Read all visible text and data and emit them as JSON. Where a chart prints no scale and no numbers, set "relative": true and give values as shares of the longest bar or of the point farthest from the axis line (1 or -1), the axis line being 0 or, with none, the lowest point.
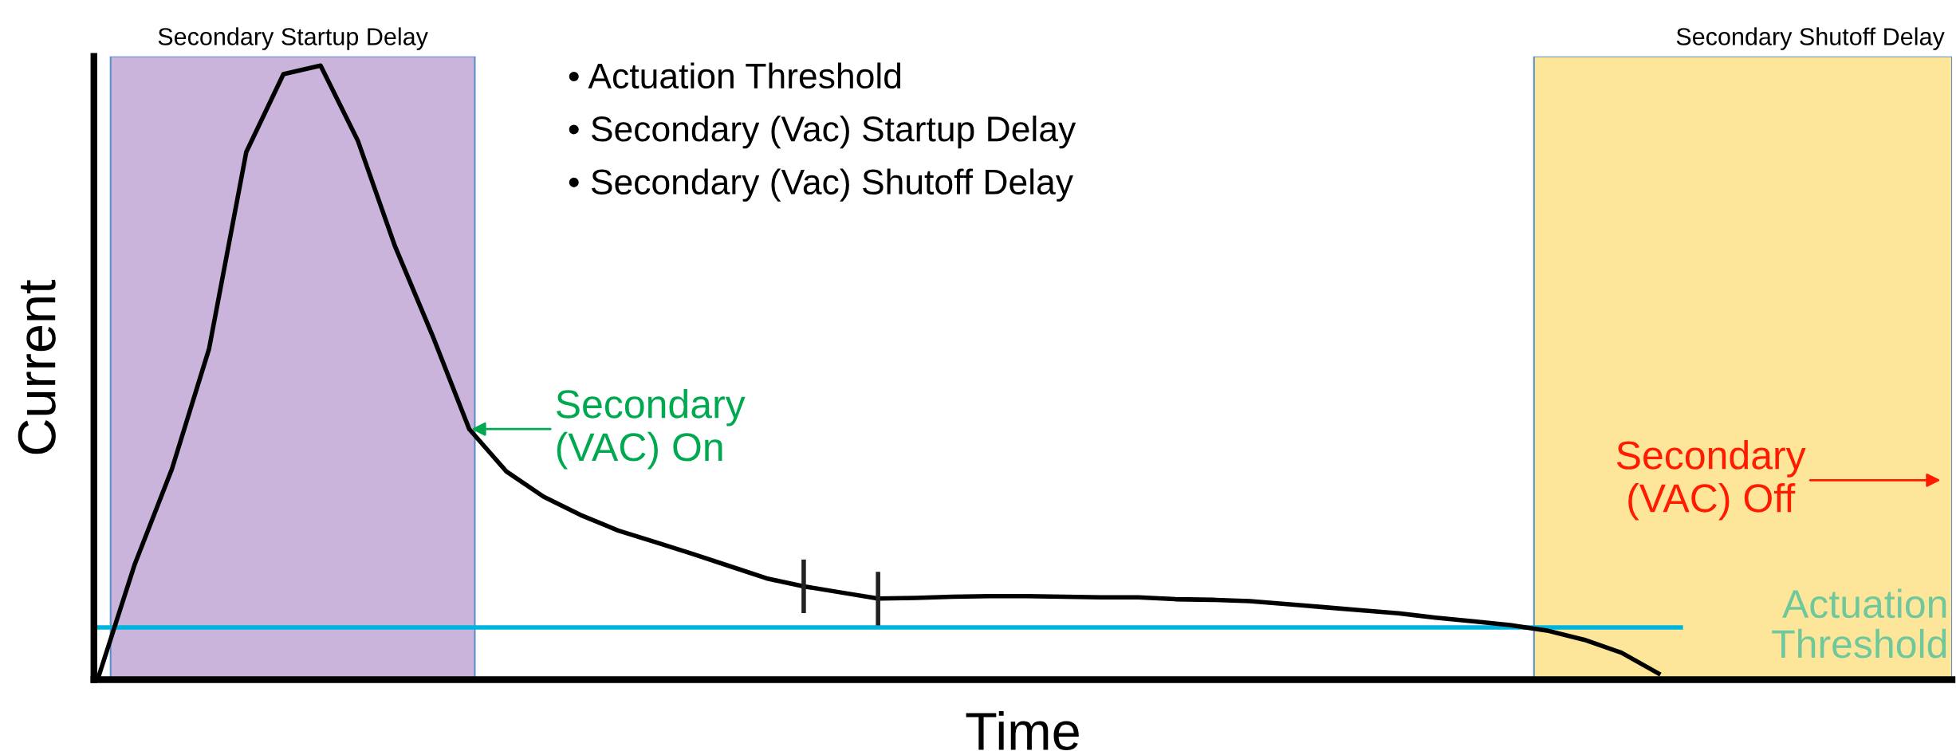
{
  "chart_data": {
    "type": "line",
    "relative": true,
    "xlabel": "Time",
    "ylabel": "Current",
    "categories": [
      null,
      null,
      null,
      null,
      null,
      null,
      null,
      null,
      null,
      null,
      null,
      null,
      null,
      null,
      null,
      null,
      null,
      null,
      null,
      null,
      null,
      null,
      null,
      null,
      null,
      null,
      null,
      null,
      null,
      null,
      null,
      null,
      null,
      null,
      null,
      null,
      null,
      null,
      null,
      null,
      null,
      null,
      null
    ],
    "series": [
      {
        "color": "#000000",
        "values": [
          0,
          0.188,
          0.343,
          0.539,
          0.859,
          0.986,
          1,
          0.878,
          0.706,
          0.562,
          0.408,
          0.339,
          0.298,
          0.268,
          0.243,
          0.224,
          0.205,
          0.185,
          0.165,
          0.152,
          0.142,
          0.132,
          0.133,
          0.135,
          0.136,
          0.136,
          0.135,
          0.134,
          0.134,
          0.131,
          0.13,
          0.128,
          0.123,
          0.118,
          0.113,
          0.108,
          0.101,
          0.095,
          0.089,
          0.08,
          0.065,
          0.044,
          0.01
        ]
      }
    ],
    "ref_lines": [
      {
        "axis": "y",
        "value": 0.085,
        "label": "Actuation Threshold",
        "color": "#00b4e0"
      }
    ],
    "annotations": [
      "• Actuation Threshold",
      "• Secondary (Vac) Startup Delay",
      "• Secondary (Vac) Shutoff Delay",
      "Secondary\n(VAC) On",
      "Secondary\n(VAC) Off",
      "Secondary Startup Delay",
      "Secondary Shutoff Delay"
    ],
    "legend": false,
    "marker": "none",
    "line_style": "solid"
  }
}
